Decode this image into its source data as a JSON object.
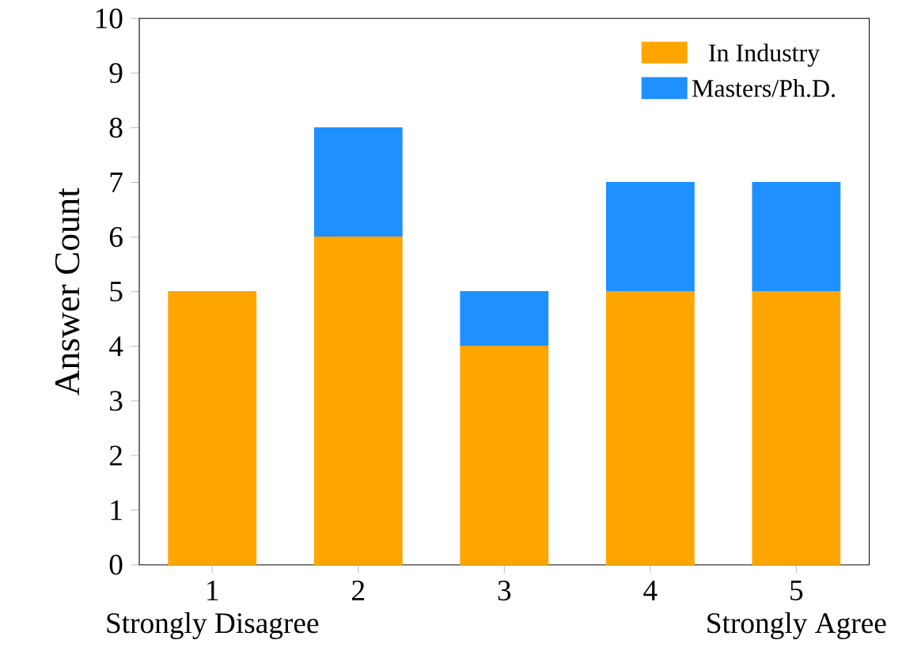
{
  "chart_data": {
    "type": "bar",
    "stacked": true,
    "ylabel": "Answer Count",
    "categories": [
      "1",
      "2",
      "3",
      "4",
      "5"
    ],
    "series": [
      {
        "name": "In Industry",
        "color": "#ffa500",
        "values": [
          5,
          6,
          4,
          5,
          5
        ]
      },
      {
        "name": "Masters/Ph.D.",
        "color": "#1e90ff",
        "values": [
          0,
          2,
          1,
          2,
          2
        ]
      }
    ],
    "ylim": [
      0,
      10
    ],
    "yticks": [
      0,
      1,
      2,
      3,
      4,
      5,
      6,
      7,
      8,
      9,
      10
    ],
    "legend": "top right",
    "grid": false,
    "annotations": [
      "Strongly Disagree",
      "Strongly Agree"
    ]
  }
}
